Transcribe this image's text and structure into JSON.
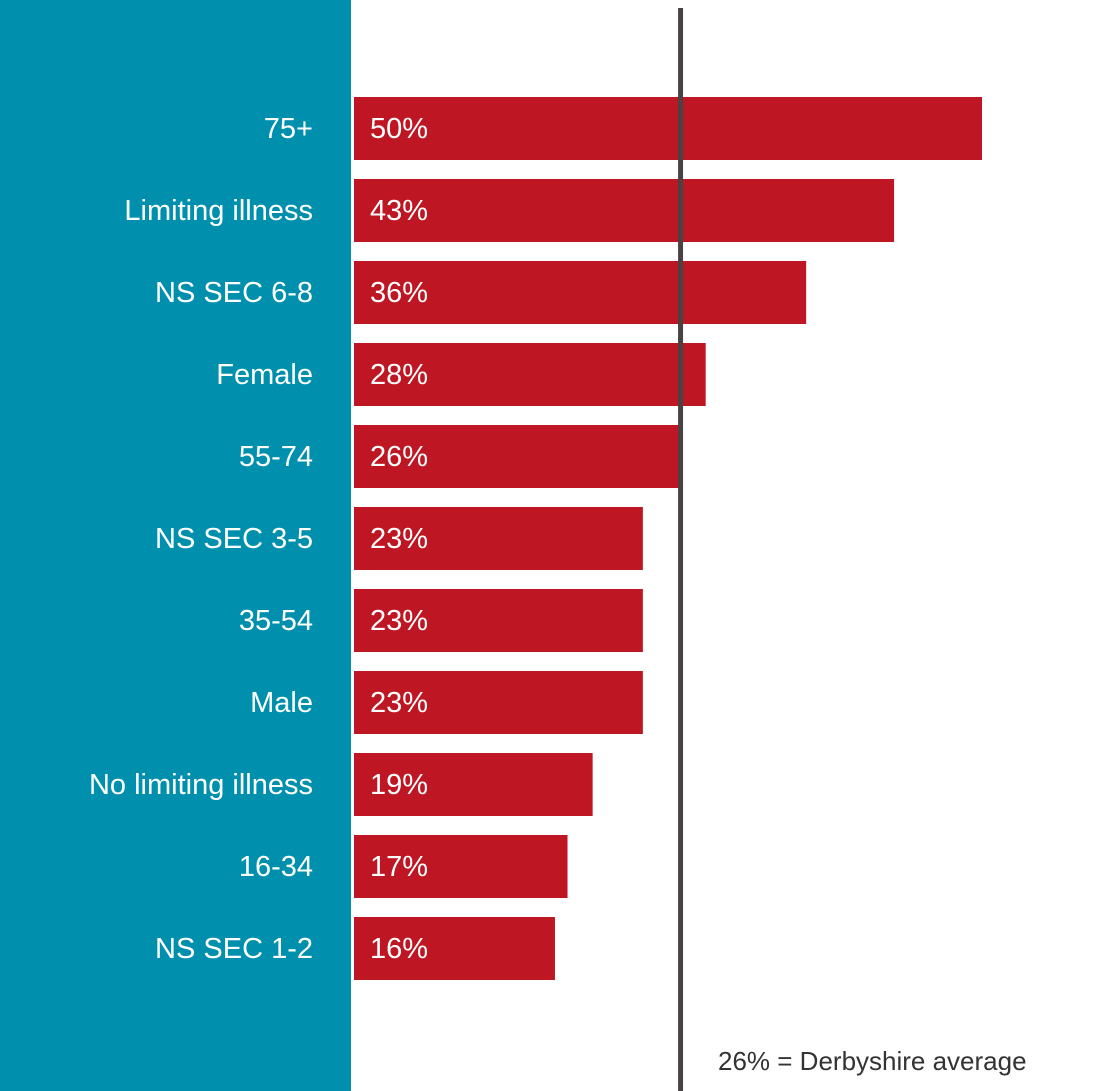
{
  "chart_data": {
    "type": "bar",
    "orientation": "horizontal",
    "categories": [
      "75+",
      "Limiting illness",
      "NS SEC 6-8",
      "Female",
      "55-74",
      "NS SEC 3-5",
      "35-54",
      "Male",
      "No limiting illness",
      "16-34",
      "NS SEC 1-2"
    ],
    "values": [
      50,
      43,
      36,
      28,
      26,
      23,
      23,
      23,
      19,
      17,
      16
    ],
    "value_labels": [
      "50%",
      "43%",
      "36%",
      "28%",
      "26%",
      "23%",
      "23%",
      "23%",
      "19%",
      "17%",
      "16%"
    ],
    "color": "#be1622",
    "panel_color": "#0090ad",
    "xlim": [
      0,
      50
    ],
    "reference": {
      "value": 26,
      "label": "26% = Derbyshire average",
      "color": "#4a4142"
    }
  }
}
